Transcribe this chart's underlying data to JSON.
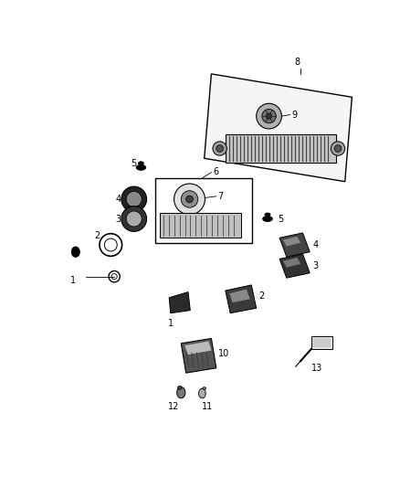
{
  "bg_color": "#ffffff",
  "line_color": "#000000",
  "gray1": "#888888",
  "gray2": "#aaaaaa",
  "gray3": "#555555",
  "darkgray": "#333333",
  "lightgray": "#dddddd",
  "midgray": "#999999"
}
